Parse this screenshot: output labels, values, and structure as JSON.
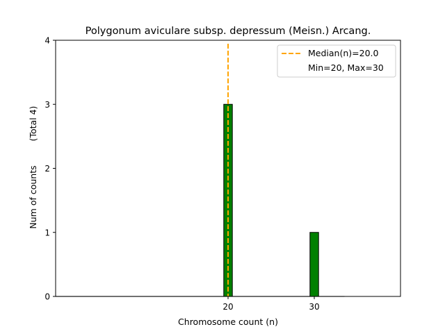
{
  "chart_data": {
    "type": "bar",
    "title": "Polygonum aviculare subsp. depressum (Meisn.) Arcang.",
    "xlabel": "Chromosome count (n)",
    "ylabel": "Num of counts",
    "ylabel_extra": "(Total 4)",
    "xlim": [
      0,
      40
    ],
    "ylim": [
      0,
      4
    ],
    "xticks": [
      20,
      30
    ],
    "yticks": [
      0,
      1,
      2,
      3,
      4
    ],
    "bars": [
      {
        "x": 20,
        "value": 3
      },
      {
        "x": 30,
        "value": 1
      }
    ],
    "bar_width": 1,
    "baseline_range": [
      0,
      33.5
    ],
    "median": 20.0,
    "legend": {
      "placement": "top-right",
      "entries": [
        "Median(n)=20.0",
        "Min=20, Max=30"
      ]
    },
    "colors": {
      "bar": "#008000",
      "bar_edge": "#000000",
      "median": "#FFA500",
      "baseline": "#bfbfbf"
    },
    "grid": false
  }
}
